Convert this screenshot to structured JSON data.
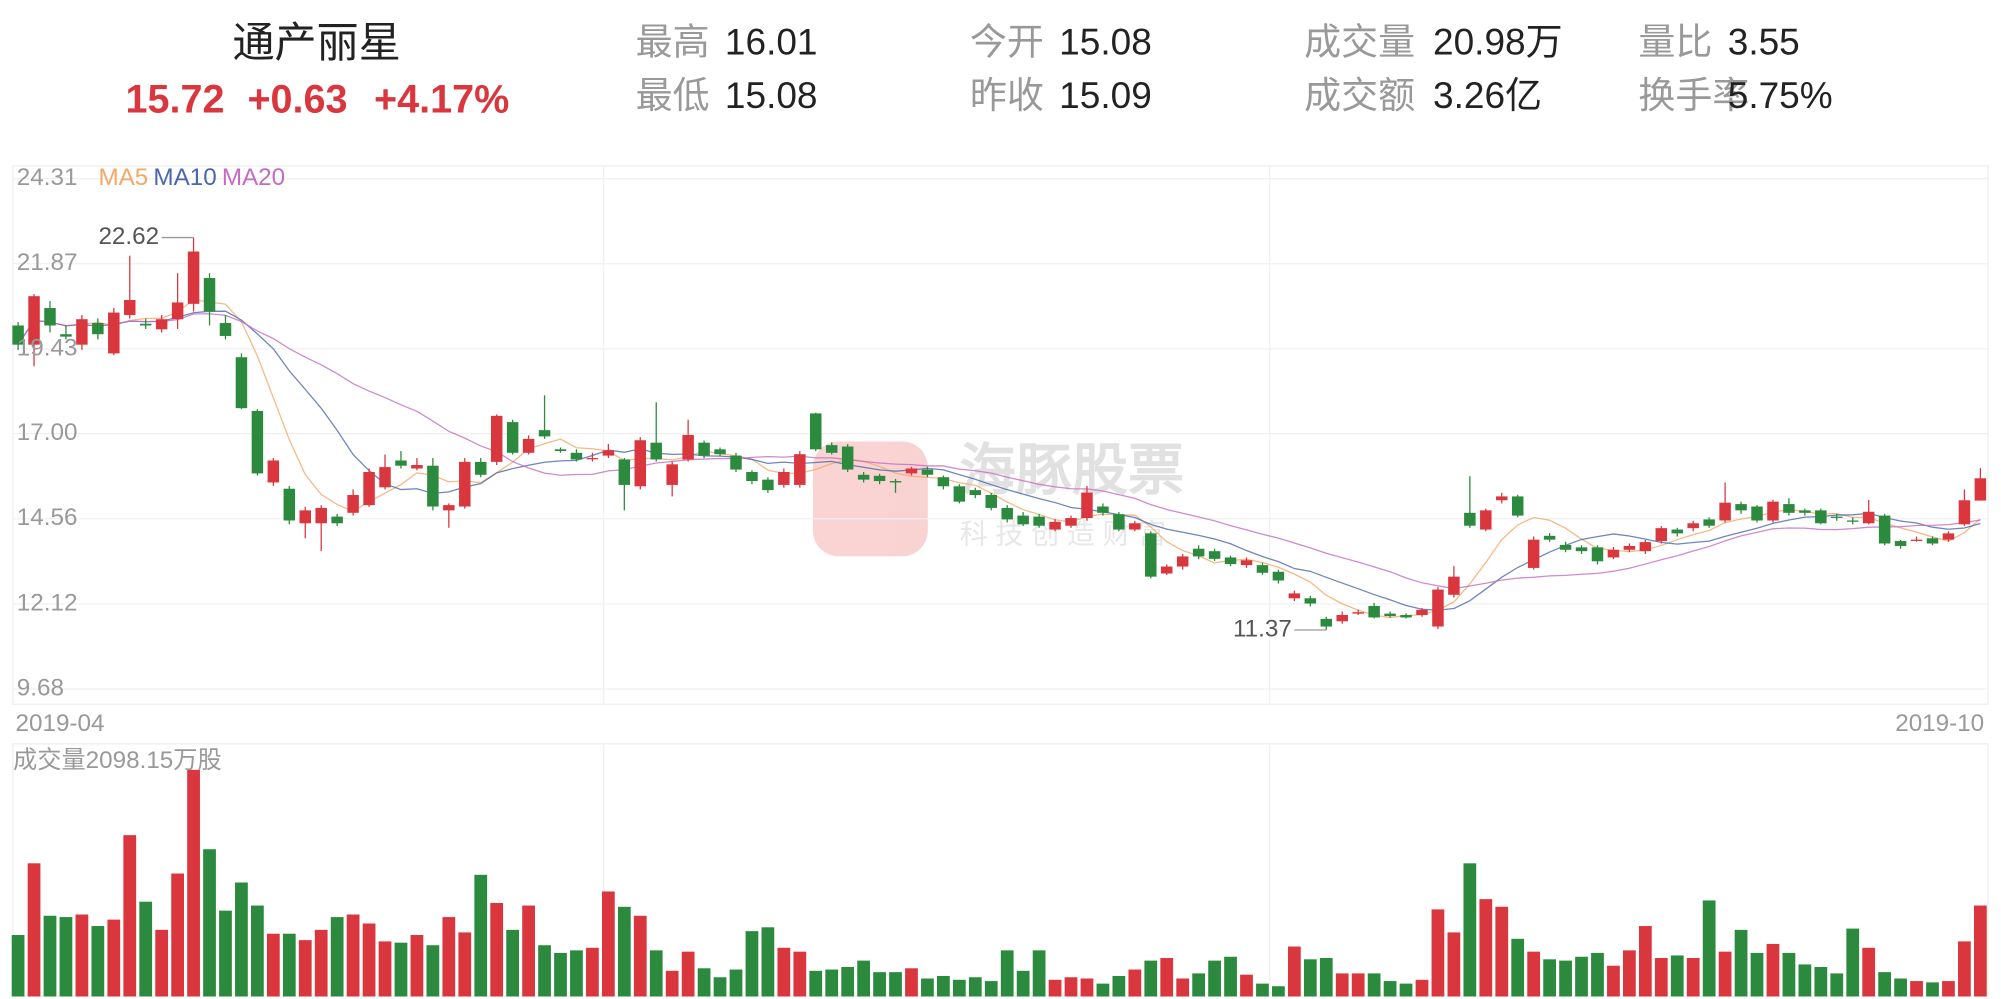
{
  "header": {
    "name": "通产丽星",
    "price": "15.72",
    "change": "+0.63",
    "change_pct": "+4.17%",
    "stats": [
      {
        "label": "最高",
        "value": "16.01"
      },
      {
        "label": "最低",
        "value": "15.08"
      },
      {
        "label": "今开",
        "value": "15.08"
      },
      {
        "label": "昨收",
        "value": "15.09"
      },
      {
        "label": "成交量",
        "value": "20.98万"
      },
      {
        "label": "成交额",
        "value": "3.26亿"
      },
      {
        "label": "量比",
        "value": "3.55"
      },
      {
        "label": "换手率",
        "value": "5.75%"
      }
    ]
  },
  "watermark": {
    "title": "海豚股票",
    "slogan": "科技创造财富"
  },
  "chart_data": {
    "type": "candlestick",
    "up_color": "#d9363e",
    "down_color": "#2b8a3e",
    "ylim": [
      9.68,
      24.31
    ],
    "yticks": [
      9.68,
      12.12,
      14.56,
      {
        "value": 17.0,
        "label": "17.00"
      },
      19.43,
      21.87,
      24.31
    ],
    "grid": true,
    "x_labels": [
      "2019-04",
      "2019-10"
    ],
    "ma": [
      {
        "name": "MA5",
        "period": 5,
        "color": "#f3a866"
      },
      {
        "name": "MA10",
        "period": 10,
        "color": "#4a66ad"
      },
      {
        "name": "MA20",
        "period": 20,
        "color": "#c46cc0"
      }
    ],
    "open": [
      20.1,
      19.55,
      20.6,
      19.85,
      19.55,
      20.17,
      19.3,
      20.4,
      20.15,
      19.99,
      20.28,
      20.72,
      21.46,
      20.17,
      19.19,
      17.65,
      15.6,
      15.42,
      14.43,
      14.43,
      14.62,
      14.73,
      14.95,
      15.46,
      16.23,
      16.0,
      16.08,
      14.8,
      14.91,
      16.19,
      16.19,
      17.33,
      16.45,
      17.1,
      16.55,
      16.45,
      16.3,
      16.37,
      16.26,
      15.49,
      16.74,
      15.53,
      16.26,
      16.74,
      16.55,
      16.37,
      15.9,
      15.68,
      15.53,
      15.53,
      17.58,
      16.67,
      16.63,
      15.82,
      15.79,
      15.64,
      15.86,
      15.97,
      15.75,
      15.49,
      15.38,
      15.24,
      14.87,
      14.65,
      14.62,
      14.25,
      14.36,
      14.58,
      14.91,
      14.69,
      14.25,
      14.14,
      12.99,
      13.19,
      13.7,
      13.63,
      13.45,
      13.23,
      13.23,
      13.04,
      12.28,
      12.28,
      11.69,
      11.62,
      11.84,
      12.06,
      11.84,
      11.8,
      11.8,
      11.47,
      12.38,
      14.73,
      14.25,
      15.09,
      15.2,
      13.15,
      14.07,
      13.81,
      13.74,
      13.74,
      13.45,
      13.67,
      13.63,
      13.92,
      14.25,
      14.29,
      14.54,
      14.51,
      14.98,
      14.91,
      14.51,
      14.98,
      14.8,
      14.8,
      14.62,
      14.51,
      14.43,
      14.65,
      13.92,
      13.96,
      14.0,
      13.96,
      14.4,
      15.08
    ],
    "high": [
      20.2,
      21.0,
      20.8,
      20.1,
      20.4,
      20.3,
      20.6,
      22.1,
      20.3,
      20.4,
      21.6,
      22.62,
      21.6,
      20.4,
      19.3,
      17.7,
      16.3,
      15.5,
      14.9,
      14.95,
      14.7,
      15.4,
      16.0,
      16.4,
      16.5,
      16.3,
      16.3,
      15.0,
      16.3,
      16.3,
      17.55,
      17.4,
      16.95,
      18.1,
      16.6,
      16.55,
      16.45,
      16.7,
      16.3,
      16.9,
      17.9,
      16.2,
      17.4,
      16.8,
      16.6,
      16.45,
      15.95,
      15.75,
      16.0,
      16.5,
      17.6,
      16.75,
      16.7,
      15.9,
      15.85,
      15.7,
      16.05,
      16.05,
      15.8,
      15.55,
      15.45,
      15.3,
      14.95,
      14.75,
      14.7,
      14.55,
      14.65,
      15.5,
      15.0,
      14.75,
      14.5,
      14.2,
      13.25,
      13.55,
      13.8,
      13.7,
      13.5,
      13.45,
      13.3,
      13.1,
      12.5,
      12.35,
      11.75,
      11.9,
      11.95,
      12.15,
      11.9,
      11.85,
      12.0,
      12.6,
      13.2,
      15.78,
      14.85,
      15.3,
      15.25,
      14.05,
      14.15,
      13.9,
      13.8,
      13.8,
      13.75,
      13.85,
      13.95,
      14.35,
      14.3,
      14.5,
      14.6,
      15.6,
      15.05,
      14.95,
      15.1,
      15.15,
      14.85,
      14.85,
      14.7,
      14.6,
      15.1,
      14.7,
      13.95,
      14.05,
      14.05,
      14.2,
      15.4,
      16.01
    ],
    "low": [
      19.4,
      18.93,
      19.9,
      19.7,
      19.4,
      19.7,
      19.25,
      20.3,
      20.0,
      19.9,
      20.0,
      20.5,
      20.1,
      19.7,
      17.7,
      15.8,
      15.5,
      14.4,
      14.0,
      13.63,
      14.35,
      14.65,
      14.9,
      15.4,
      16.0,
      15.95,
      14.8,
      14.3,
      14.85,
      15.75,
      16.1,
      16.4,
      16.4,
      16.85,
      16.45,
      16.2,
      16.2,
      16.3,
      14.8,
      15.4,
      16.2,
      15.2,
      16.2,
      16.3,
      16.35,
      15.9,
      15.55,
      15.3,
      15.45,
      15.45,
      16.5,
      16.4,
      15.9,
      15.6,
      15.55,
      15.3,
      15.8,
      15.75,
      15.4,
      15.0,
      15.15,
      14.8,
      14.45,
      14.35,
      14.3,
      14.2,
      14.3,
      14.5,
      14.65,
      14.2,
      14.2,
      12.85,
      12.95,
      13.1,
      13.4,
      13.35,
      13.2,
      13.15,
      12.95,
      12.7,
      12.2,
      12.05,
      11.37,
      11.55,
      11.8,
      11.7,
      11.72,
      11.7,
      11.75,
      11.4,
      12.3,
      14.3,
      14.2,
      15.0,
      14.6,
      13.1,
      13.9,
      13.6,
      13.55,
      13.25,
      13.4,
      13.6,
      13.55,
      13.85,
      14.05,
      14.2,
      14.3,
      14.45,
      14.7,
      14.45,
      14.45,
      14.65,
      14.65,
      14.4,
      14.5,
      14.4,
      14.4,
      13.8,
      13.7,
      13.9,
      13.8,
      13.9,
      14.35,
      15.08
    ],
    "close": [
      19.55,
      20.94,
      20.1,
      19.78,
      20.28,
      19.85,
      20.47,
      20.83,
      20.1,
      20.28,
      20.76,
      22.22,
      20.5,
      19.8,
      17.73,
      15.86,
      16.23,
      14.51,
      14.8,
      14.87,
      14.43,
      15.24,
      15.9,
      16.04,
      16.08,
      16.1,
      14.91,
      14.95,
      16.19,
      15.82,
      17.51,
      16.45,
      16.85,
      16.92,
      16.5,
      16.26,
      16.3,
      16.52,
      15.53,
      16.81,
      16.26,
      16.12,
      16.96,
      16.37,
      16.41,
      15.97,
      15.64,
      15.38,
      15.9,
      16.41,
      16.55,
      16.45,
      15.97,
      15.68,
      15.64,
      15.6,
      16.0,
      15.82,
      15.49,
      15.05,
      15.24,
      14.87,
      14.54,
      14.4,
      14.36,
      14.47,
      14.58,
      15.31,
      14.73,
      14.25,
      14.43,
      12.9,
      13.19,
      13.48,
      13.48,
      13.41,
      13.26,
      13.37,
      13.01,
      12.79,
      12.42,
      12.13,
      11.47,
      11.8,
      11.88,
      11.73,
      11.77,
      11.73,
      11.95,
      12.53,
      12.9,
      14.36,
      14.8,
      15.2,
      14.65,
      13.96,
      13.96,
      13.67,
      13.63,
      13.34,
      13.67,
      13.78,
      13.89,
      14.29,
      14.14,
      14.43,
      14.36,
      15.02,
      14.8,
      14.51,
      15.05,
      14.73,
      14.73,
      14.43,
      14.6,
      14.5,
      14.76,
      13.85,
      13.78,
      13.96,
      13.85,
      14.14,
      15.09,
      15.72
    ],
    "volume_label": "成交量2098.15万股",
    "volume": [
      1418,
      3073,
      1862,
      1832,
      1891,
      1625,
      1773,
      3723,
      2187,
      1537,
      2837,
      5230,
      3398,
      1980,
      2630,
      2098,
      1448,
      1448,
      1300,
      1537,
      1832,
      1891,
      1684,
      1271,
      1241,
      1418,
      1182,
      1832,
      1478,
      2807,
      2157,
      1537,
      2098,
      1182,
      1005,
      1064,
      1123,
      2423,
      2069,
      1862,
      1064,
      591,
      1034,
      650,
      443,
      621,
      1507,
      1596,
      1123,
      1034,
      591,
      621,
      680,
      827,
      561,
      561,
      650,
      414,
      473,
      384,
      443,
      355,
      1064,
      591,
      1064,
      384,
      443,
      414,
      296,
      473,
      621,
      827,
      887,
      414,
      532,
      827,
      916,
      502,
      296,
      236,
      1152,
      857,
      887,
      532,
      532,
      532,
      355,
      296,
      384,
      2009,
      1478,
      3073,
      2246,
      2069,
      1330,
      1034,
      857,
      827,
      916,
      1005,
      709,
      1064,
      1625,
      887,
      946,
      887,
      2216,
      1034,
      1537,
      1005,
      1212,
      1005,
      739,
      680,
      532,
      1566,
      1123,
      561,
      414,
      355,
      325,
      355,
      1271,
      2098.15
    ],
    "vlim": [
      0,
      5330
    ]
  }
}
